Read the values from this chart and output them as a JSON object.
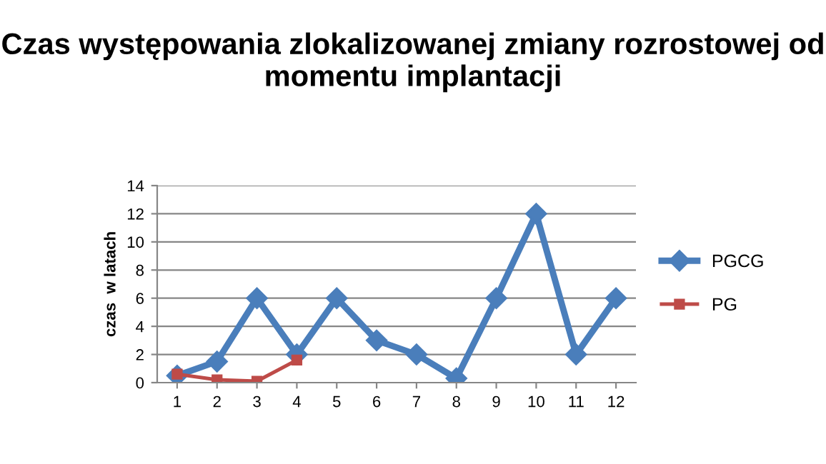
{
  "chart_data": {
    "type": "line",
    "title": "Czas występowania zlokalizowanej zmiany rozrostowej od momentu implantacji",
    "ylabel": "czas  w latach",
    "categories": [
      "1",
      "2",
      "3",
      "4",
      "5",
      "6",
      "7",
      "8",
      "9",
      "10",
      "11",
      "12"
    ],
    "series": [
      {
        "name": "PGCG",
        "color": "#4a7ebb",
        "marker": "diamond",
        "values": [
          0.5,
          1.5,
          6,
          2,
          6,
          3,
          2,
          0.3,
          6,
          12,
          2,
          6
        ]
      },
      {
        "name": "PG",
        "color": "#be4b48",
        "marker": "square",
        "values": [
          0.6,
          0.2,
          0.1,
          1.6,
          null,
          null,
          null,
          null,
          null,
          null,
          null,
          null
        ]
      }
    ],
    "ylim": [
      0,
      14
    ],
    "yticks": [
      0,
      2,
      4,
      6,
      8,
      10,
      12,
      14
    ],
    "grid": "y",
    "legend": "right",
    "line_style": "solid"
  }
}
